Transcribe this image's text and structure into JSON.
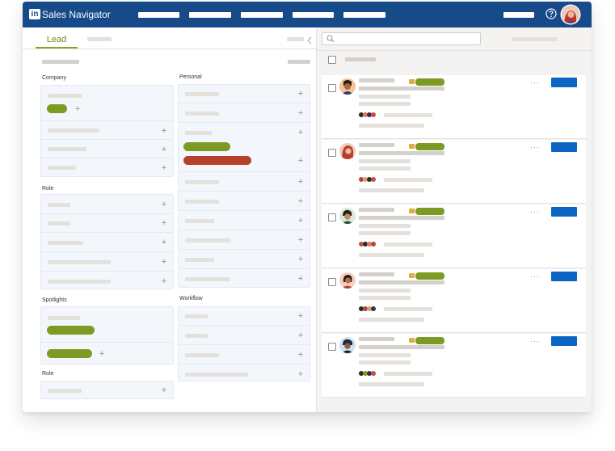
{
  "app": {
    "title": "Sales Navigator",
    "logo_text": "in",
    "colors": {
      "brand_blue": "#174a89",
      "primary_button": "#0a66c2",
      "accent_green": "#7d9a24",
      "accent_orange": "#b8402a",
      "badge_yellow": "#e0ac3e"
    }
  },
  "topbar": {
    "help_icon": "help-icon",
    "avatar": "user-avatar"
  },
  "left_panel": {
    "tab_label": "Lead",
    "collapse_icon": "chevron-left-icon",
    "sections": {
      "company": "Company",
      "role": "Role",
      "spotlights": "Spotlights",
      "role_2": "Role",
      "personal": "Personal",
      "workflow": "Workflow"
    }
  },
  "right_panel": {
    "search": {
      "icon": "search-icon",
      "placeholder": ""
    },
    "lead_cards_count": 5
  }
}
